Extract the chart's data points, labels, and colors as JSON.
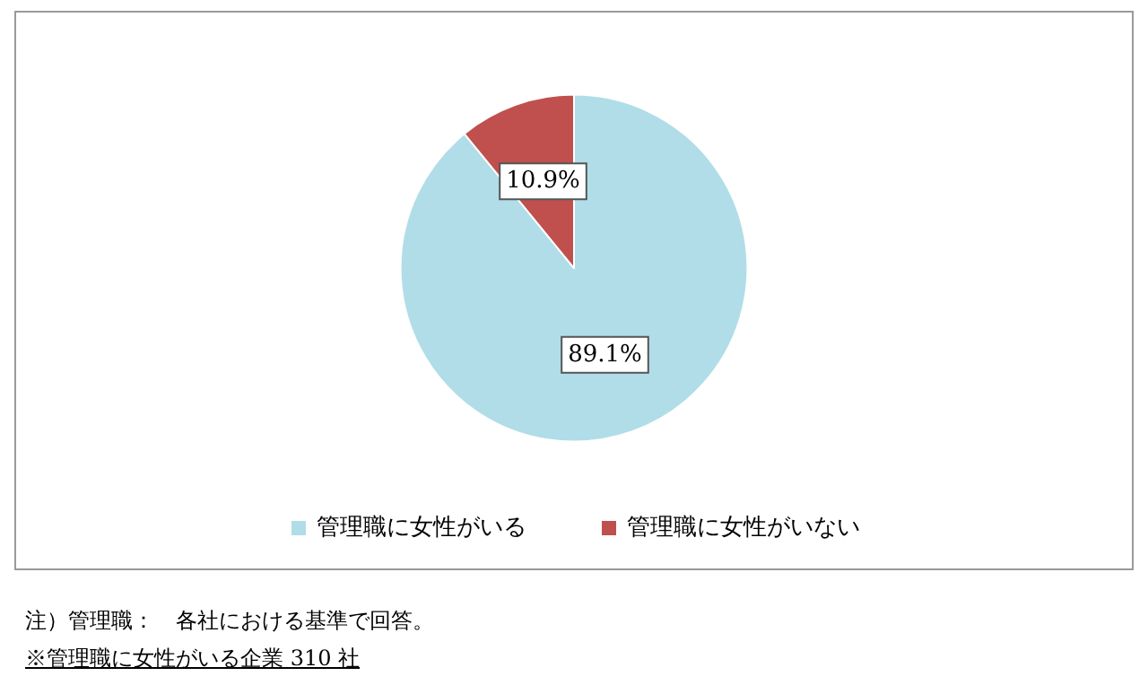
{
  "chart_data": {
    "type": "pie",
    "categories": [
      "管理職に女性がいる",
      "管理職に女性がいない"
    ],
    "values": [
      89.1,
      10.9
    ],
    "colors": [
      "#b0dde8",
      "#c0504d"
    ],
    "value_labels": [
      "89.1%",
      "10.9%"
    ],
    "legend": "bottom",
    "annotations": [
      "注）管理職：　各社における基準で回答。",
      "※管理職に女性がいる企業 310 社"
    ]
  }
}
